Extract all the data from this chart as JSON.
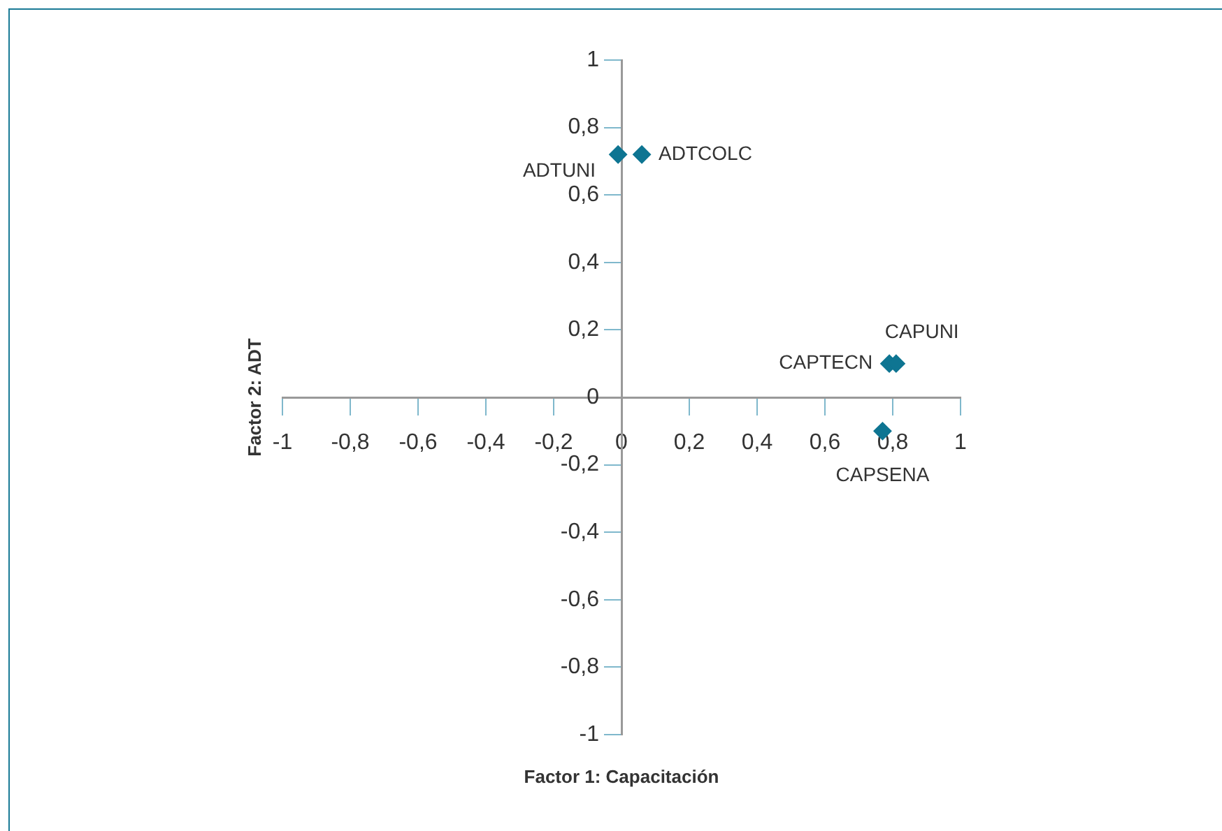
{
  "chart_data": {
    "type": "scatter",
    "xlabel": "Factor 1: Capacitación",
    "ylabel": "Factor 2: ADT",
    "marker": "diamond",
    "grid": false,
    "legend": false,
    "series": [
      {
        "color": "#0e7592",
        "x": [
          -0.01,
          0.06,
          0.79,
          0.81,
          0.77
        ],
        "values": [
          0.72,
          0.72,
          0.1,
          0.1,
          -0.1
        ]
      }
    ],
    "annotations": [
      {
        "text": "ADTUNI",
        "x": -0.01,
        "y": 0.72
      },
      {
        "text": "ADTCOLC",
        "x": 0.06,
        "y": 0.72
      },
      {
        "text": "CAPTECN",
        "x": 0.79,
        "y": 0.1
      },
      {
        "text": "CAPUNI",
        "x": 0.81,
        "y": 0.1
      },
      {
        "text": "CAPSENA",
        "x": 0.77,
        "y": -0.1
      }
    ],
    "xlim": [
      -1,
      1
    ],
    "ylim": [
      -1,
      1
    ],
    "xticks": [
      -1,
      {
        "value": -0.8,
        "label": "-0,8"
      },
      {
        "value": -0.6,
        "label": "-0,6"
      },
      {
        "value": -0.4,
        "label": "-0,4"
      },
      {
        "value": -0.2,
        "label": "-0,2"
      },
      0,
      {
        "value": 0.2,
        "label": "0,2"
      },
      {
        "value": 0.4,
        "label": "0,4"
      },
      {
        "value": 0.6,
        "label": "0,6"
      },
      {
        "value": 0.8,
        "label": "0,8"
      },
      1
    ],
    "yticks": [
      -1,
      {
        "value": -0.8,
        "label": "-0,8"
      },
      {
        "value": -0.6,
        "label": "-0,6"
      },
      {
        "value": -0.4,
        "label": "-0,4"
      },
      {
        "value": -0.2,
        "label": "-0,2"
      },
      0,
      {
        "value": 0.2,
        "label": "0,2"
      },
      {
        "value": 0.4,
        "label": "0,4"
      },
      {
        "value": 0.6,
        "label": "0,6"
      },
      {
        "value": 0.8,
        "label": "0,8"
      },
      1
    ]
  }
}
